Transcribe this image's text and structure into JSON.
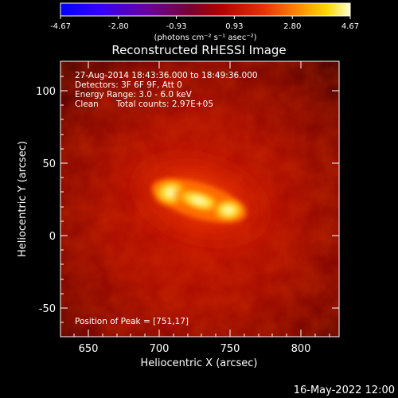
{
  "colorbar": {
    "ticks": [
      "-4.67",
      "-2.80",
      "-0.93",
      "0.93",
      "2.80",
      "4.67"
    ],
    "unit_label": "(photons cm⁻² s⁻¹ asec⁻²)"
  },
  "title": "Reconstructed RHESSI Image",
  "annotations": {
    "time_range": "27-Aug-2014 18:43:36.000 to 18:49:36.000",
    "detectors": "Detectors: 3F 6F 9F, Att 0",
    "energy": "Energy Range: 3.0 - 6.0 keV",
    "algorithm": "Clean",
    "counts": "Total counts: 2.97E+05",
    "peak": "Position of Peak = [751,17]"
  },
  "axes": {
    "xlabel": "Heliocentric X (arcsec)",
    "ylabel": "Heliocentric Y (arcsec)",
    "xticks": [
      "650",
      "700",
      "750",
      "800"
    ],
    "yticks": [
      "-50",
      "0",
      "50",
      "100"
    ],
    "xrange": [
      632,
      825
    ],
    "yrange": [
      -70,
      120
    ]
  },
  "image": {
    "peak_x": 751,
    "peak_y": 17,
    "colormap": [
      "#000000",
      "#6b0000",
      "#b01000",
      "#e04a00",
      "#ff9a00",
      "#ffe000",
      "#ffffc8"
    ]
  },
  "footer": {
    "date": "16-May-2022 12:00"
  }
}
